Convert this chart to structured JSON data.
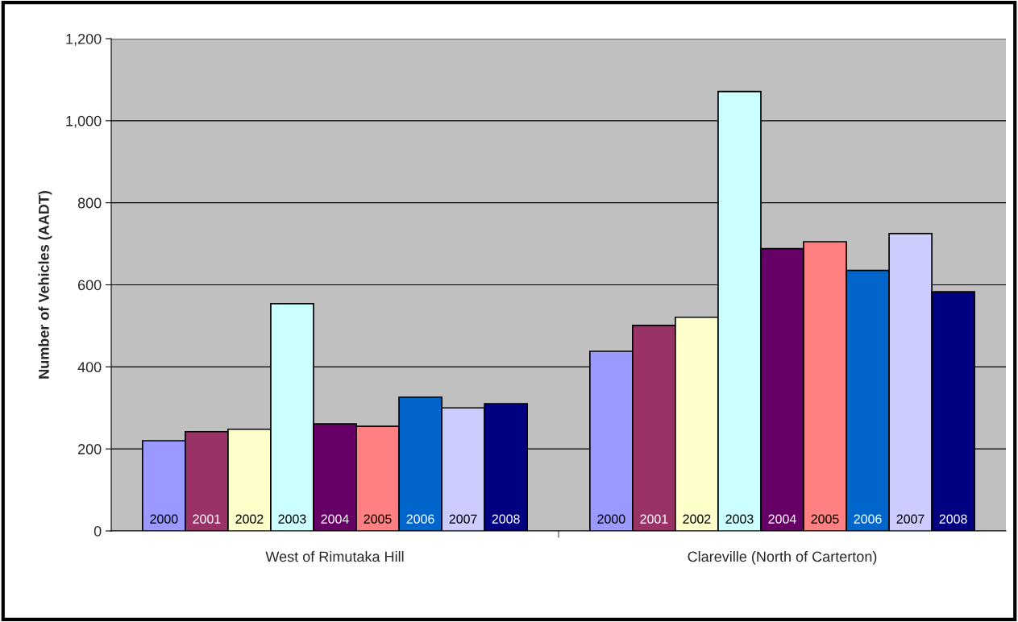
{
  "chart_data": {
    "type": "bar",
    "ylabel": "Number of Vehicles (AADT)",
    "categories": [
      "West of Rimutaka Hill",
      "Clareville (North of Carterton)"
    ],
    "series": [
      {
        "name": "2000",
        "color": "#9999ff",
        "values": [
          220,
          438
        ]
      },
      {
        "name": "2001",
        "color": "#993366",
        "values": [
          242,
          501
        ]
      },
      {
        "name": "2002",
        "color": "#ffffcc",
        "values": [
          248,
          521
        ]
      },
      {
        "name": "2003",
        "color": "#ccffff",
        "values": [
          554,
          1071
        ]
      },
      {
        "name": "2004",
        "color": "#660066",
        "values": [
          261,
          688
        ]
      },
      {
        "name": "2005",
        "color": "#ff8080",
        "values": [
          255,
          705
        ]
      },
      {
        "name": "2006",
        "color": "#0066cc",
        "values": [
          326,
          635
        ]
      },
      {
        "name": "2007",
        "color": "#ccccff",
        "values": [
          300,
          725
        ]
      },
      {
        "name": "2008",
        "color": "#000080",
        "values": [
          310,
          583
        ]
      }
    ],
    "ylim": [
      0,
      1200
    ],
    "yticks": [
      0,
      200,
      400,
      600,
      800,
      {
        "value": 1000,
        "label": "1,000"
      },
      {
        "value": 1200,
        "label": "1,200"
      }
    ],
    "grid": "y",
    "legend": false
  }
}
